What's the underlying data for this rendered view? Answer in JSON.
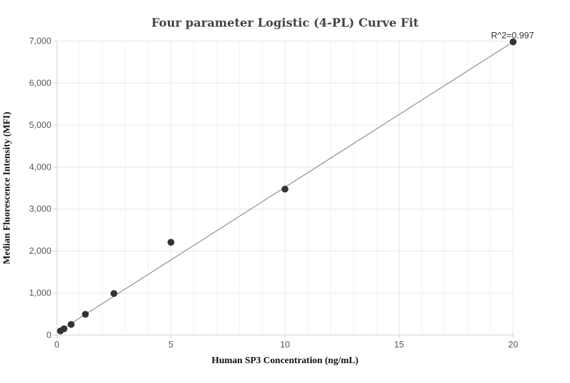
{
  "chart_data": {
    "type": "scatter",
    "title": "Four parameter Logistic (4-PL) Curve Fit",
    "xlabel": "Human SP3 Concentration (ng/mL)",
    "ylabel": "Median Fluorescence Intensity (MFI)",
    "xlim": [
      0,
      20
    ],
    "ylim": [
      0,
      7000
    ],
    "x_ticks": [
      0,
      5,
      10,
      15,
      20
    ],
    "x_tick_labels": [
      "0",
      "5",
      "10",
      "15",
      "20"
    ],
    "y_ticks": [
      0,
      1000,
      2000,
      3000,
      4000,
      5000,
      6000,
      7000
    ],
    "y_tick_labels": [
      "0",
      "1,000",
      "2,000",
      "3,000",
      "4,000",
      "5,000",
      "6,000",
      "7,000"
    ],
    "grid": true,
    "series": [
      {
        "type": "scatter",
        "x": [
          0.156,
          0.3125,
          0.625,
          1.25,
          2.5,
          5,
          10,
          20
        ],
        "y": [
          100,
          150,
          255,
          495,
          990,
          2210,
          3475,
          6980
        ],
        "color": "#333333"
      },
      {
        "type": "line",
        "x": [
          0.1,
          20
        ],
        "y": [
          95,
          6980
        ],
        "color": "#8a8a8a"
      }
    ],
    "annotation": "R^2=0.997"
  }
}
